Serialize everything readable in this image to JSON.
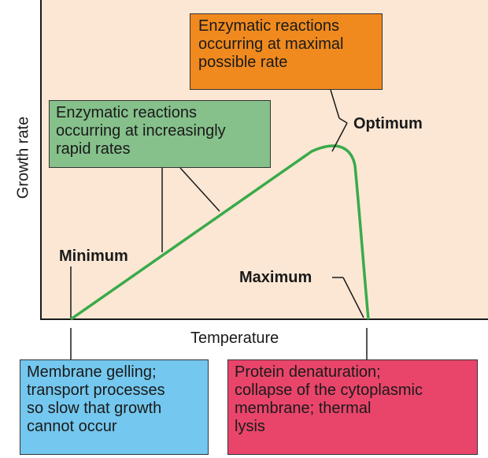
{
  "boxes": {
    "optimum_note": {
      "lines": [
        "Enzymatic reactions",
        "occurring at maximal",
        "possible rate"
      ],
      "color": "#f08a1e"
    },
    "increasing_note": {
      "lines": [
        "Enzymatic reactions",
        "occurring at increasingly",
        "rapid rates"
      ],
      "color": "#86c08b"
    },
    "minimum_note": {
      "lines": [
        "Membrane gelling;",
        "transport processes",
        "so slow that growth",
        "cannot occur"
      ],
      "color": "#74c7ee"
    },
    "maximum_note": {
      "lines": [
        "Protein denaturation;",
        "collapse of the cytoplasmic",
        "membrane; thermal",
        "lysis"
      ],
      "color": "#e9456b"
    }
  },
  "labels": {
    "optimum": "Optimum",
    "minimum": "Minimum",
    "maximum": "Maximum",
    "x_axis": "Temperature",
    "y_axis": "Growth rate"
  },
  "colors": {
    "plot_background": "#fbe7d4",
    "curve": "#3aaa4a",
    "axes": "#1a1a1a"
  }
}
